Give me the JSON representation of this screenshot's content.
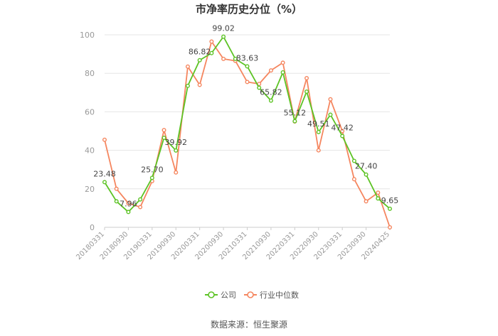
{
  "title": "市净率历史分位（%）",
  "source": "数据来源：恒生聚源",
  "colors": {
    "company": "#5cc324",
    "industry": "#f5865f",
    "grid": "#e6e6e6",
    "axis": "#999999"
  },
  "chart_data": {
    "type": "line",
    "title": "市净率历史分位（%）",
    "xlabel": "",
    "ylabel": "",
    "ylim": [
      0,
      100
    ],
    "yticks": [
      0,
      20,
      40,
      60,
      80,
      100
    ],
    "grid": true,
    "legend_position": "bottom",
    "x_tick_labels": [
      "20180331",
      "20180930",
      "20190331",
      "20190930",
      "20200331",
      "20200930",
      "20210331",
      "20210930",
      "20220331",
      "20220930",
      "20230331",
      "20230930",
      "20240425"
    ],
    "series": [
      {
        "name": "公司",
        "color": "#5cc324",
        "values": [
          23.48,
          13.5,
          7.96,
          14.5,
          25.7,
          46.5,
          39.92,
          73.5,
          86.82,
          90.5,
          99.02,
          87.5,
          83.63,
          72.5,
          65.82,
          80.5,
          55.12,
          70.5,
          49.51,
          58.5,
          47.42,
          34.5,
          27.4,
          15.0,
          9.65
        ]
      },
      {
        "name": "行业中位数",
        "color": "#f5865f",
        "values": [
          45.5,
          20.0,
          12.5,
          10.5,
          24.0,
          50.5,
          28.5,
          83.5,
          74.0,
          96.5,
          87.5,
          86.5,
          75.5,
          74.5,
          81.5,
          85.5,
          55.0,
          77.5,
          40.0,
          66.5,
          50.0,
          25.0,
          13.5,
          18.0,
          0.0
        ]
      }
    ],
    "data_labels": [
      {
        "index": 0,
        "text": "23.48"
      },
      {
        "index": 2,
        "text": "7.96"
      },
      {
        "index": 4,
        "text": "25.70"
      },
      {
        "index": 6,
        "text": "39.92"
      },
      {
        "index": 8,
        "text": "86.82"
      },
      {
        "index": 10,
        "text": "99.02"
      },
      {
        "index": 12,
        "text": "83.63"
      },
      {
        "index": 14,
        "text": "65.82"
      },
      {
        "index": 16,
        "text": "55.12"
      },
      {
        "index": 18,
        "text": "49.51"
      },
      {
        "index": 20,
        "text": "47.42"
      },
      {
        "index": 22,
        "text": "27.40"
      },
      {
        "index": 24,
        "text": "9.65"
      }
    ]
  }
}
